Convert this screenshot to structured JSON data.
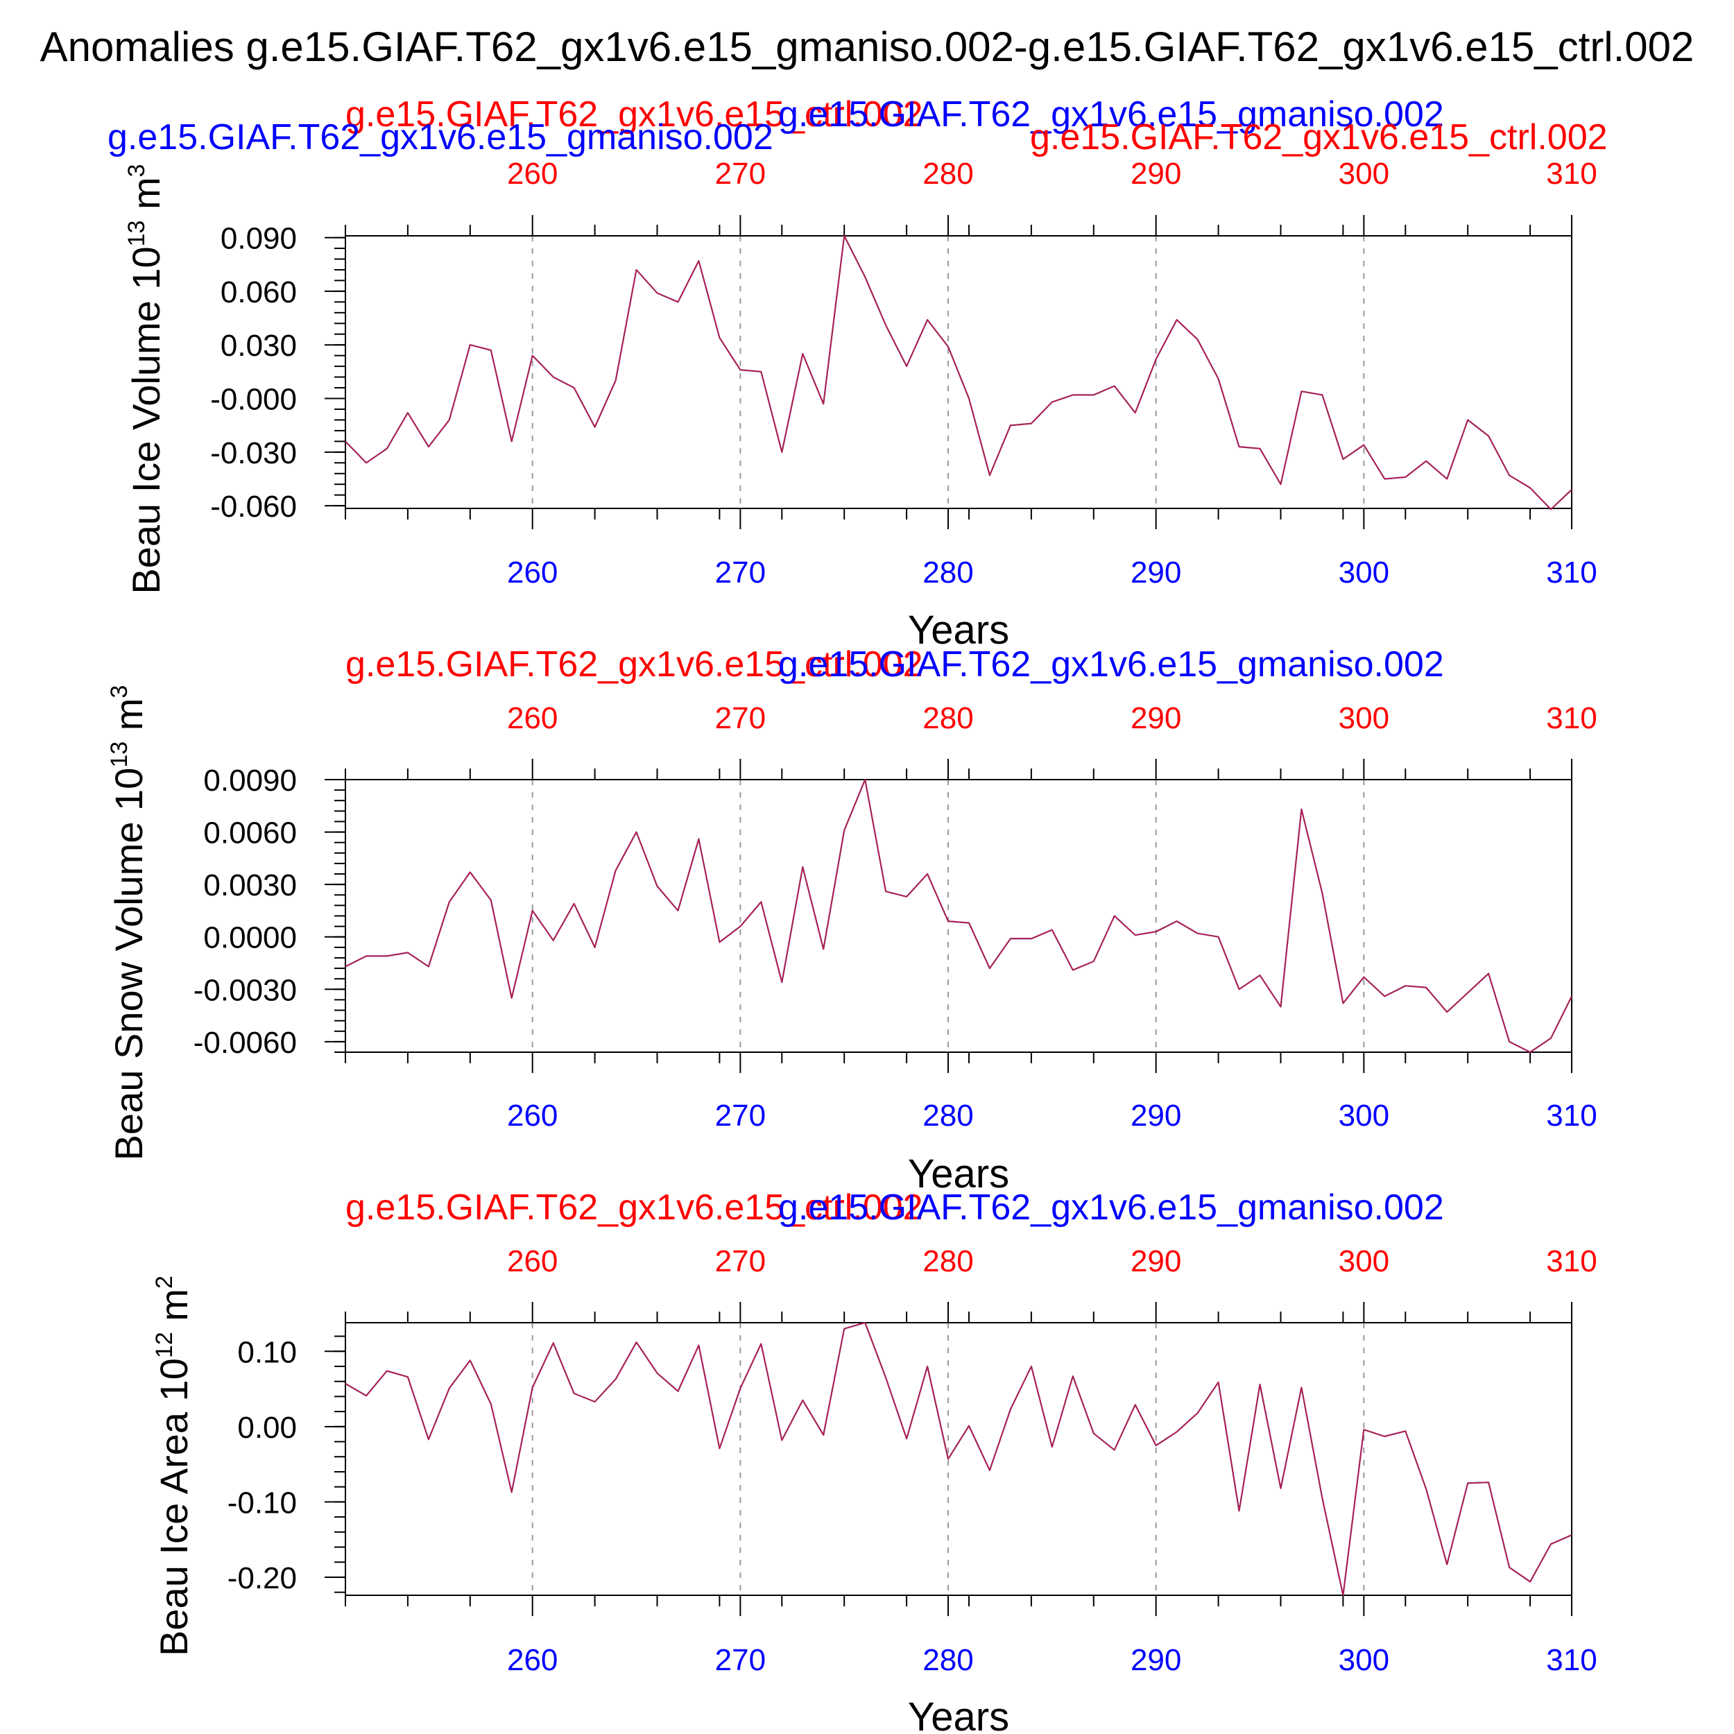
{
  "title": "Anomalies g.e15.GIAF.T62_gx1v6.e15_gmaniso.002-g.e15.GIAF.T62_gx1v6.e15_ctrl.002",
  "colors": {
    "ctrl": "#ff0000",
    "gmaniso": "#0000ff",
    "axis": "#000000",
    "grid": "#999999",
    "line": "#b0204a"
  },
  "chart_data": [
    {
      "type": "line",
      "ylabel": "Beau Ice Volume 10",
      "ylabel_exp": "13",
      "ylabel_unit": "m",
      "ylabel_unit_exp": "3",
      "xlabel": "Years",
      "top_label_blue": "g.e15.GIAF.T62_gx1v6.e15_gmaniso.002",
      "top_label_red": "g.e15.GIAF.T62_gx1v6.e15_ctrl.002",
      "top_label_blue_2": "g.e15.GIAF.T62_gx1v6.e15_gmaniso.002",
      "top_label_red_2": "g.e15.GIAF.T62_gx1v6.e15_ctrl.002",
      "top_ticks": [
        "260",
        "270",
        "280",
        "290",
        "300",
        "310"
      ],
      "bottom_ticks": [
        "260",
        "270",
        "280",
        "290",
        "300",
        "310"
      ],
      "yticks": [
        "0.090",
        "0.060",
        "0.030",
        "-0.000",
        "-0.030",
        "-0.060"
      ],
      "ytick_values": [
        0.09,
        0.06,
        0.03,
        0.0,
        -0.03,
        -0.06
      ],
      "xlim": [
        251,
        310
      ],
      "ylim": [
        -0.0615,
        0.091
      ],
      "x_start": 251,
      "series": [
        {
          "color_key": "line",
          "values": [
            -0.024,
            -0.036,
            -0.028,
            -0.008,
            -0.027,
            -0.012,
            0.03,
            0.027,
            -0.024,
            0.024,
            0.012,
            0.006,
            -0.016,
            0.01,
            0.072,
            0.059,
            0.054,
            0.077,
            0.034,
            0.016,
            0.015,
            -0.03,
            0.025,
            -0.003,
            0.091,
            0.068,
            0.041,
            0.018,
            0.044,
            0.029,
            0.0,
            -0.043,
            -0.015,
            -0.014,
            -0.002,
            0.002,
            0.002,
            0.007,
            -0.008,
            0.022,
            0.044,
            0.033,
            0.011,
            -0.027,
            -0.028,
            -0.048,
            0.004,
            0.002,
            -0.034,
            -0.026,
            -0.045,
            -0.044,
            -0.035,
            -0.045,
            -0.012,
            -0.021,
            -0.043,
            -0.05,
            -0.062,
            -0.051
          ]
        }
      ]
    },
    {
      "type": "line",
      "ylabel": "Beau Snow Volume 10",
      "ylabel_exp": "13",
      "ylabel_unit": "m",
      "ylabel_unit_exp": "3",
      "xlabel": "Years",
      "top_label_blue": "g.e15.GIAF.T62_gx1v6.e15_gmaniso.002",
      "top_label_red": "g.e15.GIAF.T62_gx1v6.e15_ctrl.002",
      "top_ticks": [
        "260",
        "270",
        "280",
        "290",
        "300",
        "310"
      ],
      "bottom_ticks": [
        "260",
        "270",
        "280",
        "290",
        "300",
        "310"
      ],
      "yticks": [
        "0.0090",
        "0.0060",
        "0.0030",
        "0.0000",
        "-0.0030",
        "-0.0060"
      ],
      "ytick_values": [
        0.009,
        0.006,
        0.003,
        0.0,
        -0.003,
        -0.006
      ],
      "xlim": [
        251,
        310
      ],
      "ylim": [
        -0.0066,
        0.009
      ],
      "x_start": 251,
      "series": [
        {
          "color_key": "line",
          "values": [
            -0.0017,
            -0.0011,
            -0.0011,
            -0.0009,
            -0.0017,
            0.002,
            0.0037,
            0.0021,
            -0.0035,
            0.0015,
            -0.0002,
            0.0019,
            -0.0006,
            0.0038,
            0.006,
            0.0029,
            0.0015,
            0.0056,
            -0.0003,
            0.0006,
            0.002,
            -0.0026,
            0.004,
            -0.0007,
            0.0061,
            0.009,
            0.0026,
            0.0023,
            0.0036,
            0.0009,
            0.0008,
            -0.0018,
            -0.0001,
            -0.0001,
            0.0004,
            -0.0019,
            -0.0014,
            0.0012,
            0.0001,
            0.0003,
            0.0009,
            0.0002,
            0.0,
            -0.003,
            -0.0022,
            -0.004,
            0.0073,
            0.0025,
            -0.0038,
            -0.0023,
            -0.0034,
            -0.0028,
            -0.0029,
            -0.0043,
            -0.0032,
            -0.0021,
            -0.006,
            -0.0066,
            -0.0058,
            -0.0034
          ]
        }
      ]
    },
    {
      "type": "line",
      "ylabel": "Beau Ice Area 10",
      "ylabel_exp": "12",
      "ylabel_unit": "m",
      "ylabel_unit_exp": "2",
      "xlabel": "Years",
      "top_label_blue": "g.e15.GIAF.T62_gx1v6.e15_gmaniso.002",
      "top_label_red": "g.e15.GIAF.T62_gx1v6.e15_ctrl.002",
      "top_ticks": [
        "260",
        "270",
        "280",
        "290",
        "300",
        "310"
      ],
      "bottom_ticks": [
        "260",
        "270",
        "280",
        "290",
        "300",
        "310"
      ],
      "yticks": [
        "0.10",
        "0.00",
        "-0.10",
        "-0.20"
      ],
      "ytick_values": [
        0.1,
        0.0,
        -0.1,
        -0.2
      ],
      "xlim": [
        251,
        310
      ],
      "ylim": [
        -0.224,
        0.138
      ],
      "x_start": 251,
      "series": [
        {
          "color_key": "line",
          "values": [
            0.057,
            0.041,
            0.074,
            0.066,
            -0.017,
            0.051,
            0.088,
            0.03,
            -0.087,
            0.052,
            0.111,
            0.044,
            0.033,
            0.063,
            0.112,
            0.071,
            0.047,
            0.108,
            -0.029,
            0.051,
            0.11,
            -0.018,
            0.035,
            -0.011,
            0.13,
            0.138,
            0.065,
            -0.016,
            0.08,
            -0.043,
            0.001,
            -0.058,
            0.023,
            0.08,
            -0.027,
            0.067,
            -0.009,
            -0.031,
            0.029,
            -0.025,
            -0.007,
            0.018,
            0.059,
            -0.112,
            0.056,
            -0.082,
            0.052,
            -0.095,
            -0.224,
            -0.004,
            -0.013,
            -0.006,
            -0.083,
            -0.183,
            -0.075,
            -0.074,
            -0.187,
            -0.206,
            -0.156,
            -0.144
          ]
        }
      ]
    }
  ]
}
